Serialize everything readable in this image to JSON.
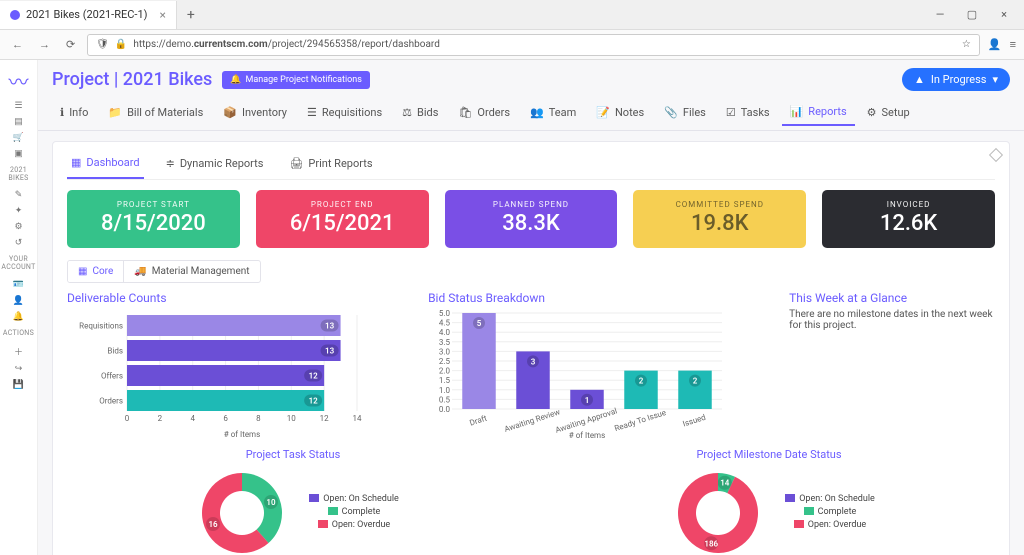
{
  "browser": {
    "tab_title": "2021 Bikes (2021-REC-1)",
    "url_prefix": "https://demo.",
    "url_bold": "currentscm.com",
    "url_suffix": "/project/294565358/report/dashboard"
  },
  "header": {
    "title": "Project | 2021 Bikes",
    "notif_btn": "Manage Project Notifications",
    "status": "In Progress"
  },
  "sidebar": {
    "project_label": "2021 BIKES",
    "account_label": "YOUR ACCOUNT",
    "actions_label": "ACTIONS"
  },
  "topnav": [
    {
      "icon": "ℹ",
      "label": "Info"
    },
    {
      "icon": "📁",
      "label": "Bill of Materials"
    },
    {
      "icon": "📦",
      "label": "Inventory"
    },
    {
      "icon": "☰",
      "label": "Requisitions"
    },
    {
      "icon": "⚖",
      "label": "Bids"
    },
    {
      "icon": "🛍",
      "label": "Orders"
    },
    {
      "icon": "👥",
      "label": "Team"
    },
    {
      "icon": "📝",
      "label": "Notes"
    },
    {
      "icon": "📎",
      "label": "Files"
    },
    {
      "icon": "☑",
      "label": "Tasks"
    },
    {
      "icon": "📊",
      "label": "Reports"
    },
    {
      "icon": "⚙",
      "label": "Setup"
    }
  ],
  "subtabs": {
    "dashboard": "Dashboard",
    "dynamic": "Dynamic Reports",
    "print": "Print Reports"
  },
  "panel_tabs": {
    "core": "Core",
    "material": "Material Management"
  },
  "kpi": [
    {
      "label": "PROJECT START",
      "value": "8/15/2020",
      "bg": "#35c28a"
    },
    {
      "label": "PROJECT END",
      "value": "6/15/2021",
      "bg": "#ef4668"
    },
    {
      "label": "PLANNED SPEND",
      "value": "38.3K",
      "bg": "#7a4fe6"
    },
    {
      "label": "COMMITTED SPEND",
      "value": "19.8K",
      "bg": "#f6cf52",
      "fg": "#6a5d2a"
    },
    {
      "label": "INVOICED",
      "value": "12.6K",
      "bg": "#2b2c31"
    }
  ],
  "deliverable": {
    "title": "Deliverable Counts",
    "axis_title": "# of Items",
    "xmax": 14,
    "xticks": [
      0,
      2,
      4,
      6,
      8,
      10,
      12,
      14
    ],
    "rows": [
      {
        "label": "Requisitions",
        "value": 13,
        "color": "#9a87e6"
      },
      {
        "label": "Bids",
        "value": 13,
        "color": "#6b4fd6"
      },
      {
        "label": "Offers",
        "value": 12,
        "color": "#6b4fd6"
      },
      {
        "label": "Orders",
        "value": 12,
        "color": "#1ebab5"
      }
    ]
  },
  "bidstatus": {
    "title": "Bid Status Breakdown",
    "axis_title": "# of Items",
    "ymax": 5,
    "yticks": [
      0.0,
      0.5,
      1.0,
      1.5,
      2.0,
      2.5,
      3.0,
      3.5,
      4.0,
      4.5,
      5.0
    ],
    "bars": [
      {
        "label": "Draft",
        "value": 5,
        "color": "#9a87e6"
      },
      {
        "label": "Awaiting Review",
        "value": 3,
        "color": "#6b4fd6"
      },
      {
        "label": "Awaiting Approval",
        "value": 1,
        "color": "#6b4fd6"
      },
      {
        "label": "Ready To Issue",
        "value": 2,
        "color": "#1ebab5"
      },
      {
        "label": "Issued",
        "value": 2,
        "color": "#1ebab5"
      }
    ]
  },
  "glance": {
    "title": "This Week at a Glance",
    "text": "There are no milestone dates in the next week for this project."
  },
  "donut_legend": [
    {
      "label": "Open: On Schedule",
      "color": "#6b4fd6"
    },
    {
      "label": "Complete",
      "color": "#35c28a"
    },
    {
      "label": "Open: Overdue",
      "color": "#ef4668"
    }
  ],
  "task_status": {
    "title": "Project Task Status",
    "segments": [
      {
        "label": "0",
        "value": 0,
        "color": "#6b4fd6"
      },
      {
        "label": "10",
        "value": 10,
        "color": "#35c28a"
      },
      {
        "label": "16",
        "value": 16,
        "color": "#ef4668"
      }
    ]
  },
  "milestone_status": {
    "title": "Project Milestone Date Status",
    "segments": [
      {
        "label": "0",
        "value": 0,
        "color": "#6b4fd6"
      },
      {
        "label": "14",
        "value": 14,
        "color": "#35c28a"
      },
      {
        "label": "186",
        "value": 186,
        "color": "#ef4668"
      }
    ]
  }
}
